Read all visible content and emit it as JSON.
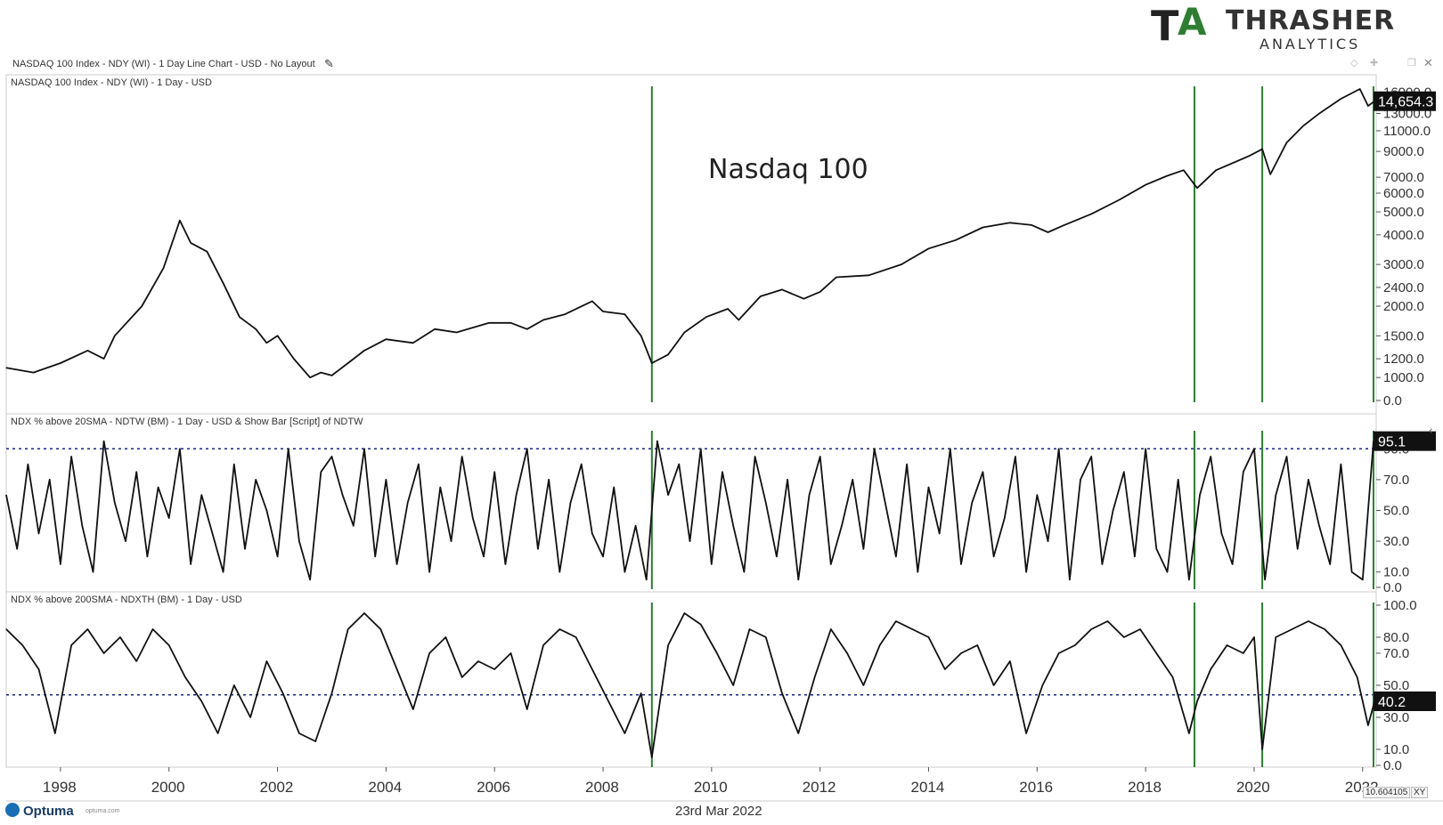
{
  "header": {
    "window_title": "NASDAQ 100 Index - NDY (WI) - 1 Day Line Chart - USD - No Layout",
    "logo_line1_a": "T",
    "logo_line1_b": "THRASHER",
    "logo_line2": "ANALYTICS"
  },
  "footer": {
    "brand": "Optuma",
    "brand_small": "optuma.com",
    "date": "23rd Mar 2022",
    "scale_value": "10.604105",
    "scale_mode": "XY"
  },
  "colors": {
    "line": "#111111",
    "marker": "#2e7d32",
    "dotted": "#1a237e",
    "panel_border": "#cccccc",
    "value_box": "#111111"
  },
  "chart_data": [
    {
      "type": "line",
      "panel_label": "NASDAQ 100 Index - NDY (WI) - 1 Day - USD",
      "annotation": "Nasdaq 100",
      "y_scale": "log",
      "yticks": [
        "16000.0",
        "13000.0",
        "11000.0",
        "9000.0",
        "7000.0",
        "6000.0",
        "5000.0",
        "4000.0",
        "3000.0",
        "2400.0",
        "2000.0",
        "1500.0",
        "1200.0",
        "1000.0",
        "0.0"
      ],
      "last_value": "14,654.3",
      "series": [
        {
          "x": [
            1997.0,
            1997.5,
            1998.0,
            1998.5,
            1998.8,
            1999.0,
            1999.5,
            1999.9,
            2000.2,
            2000.4,
            2000.7,
            2001.0,
            2001.3,
            2001.6,
            2001.8,
            2002.0,
            2002.3,
            2002.6,
            2002.8,
            2003.0,
            2003.3,
            2003.6,
            2004.0,
            2004.5,
            2004.9,
            2005.3,
            2005.9,
            2006.3,
            2006.6,
            2006.9,
            2007.3,
            2007.8,
            2008.0,
            2008.4,
            2008.7,
            2008.9,
            2009.2,
            2009.5,
            2009.9,
            2010.3,
            2010.5,
            2010.9,
            2011.3,
            2011.7,
            2012.0,
            2012.3,
            2012.9,
            2013.5,
            2014.0,
            2014.5,
            2015.0,
            2015.5,
            2015.9,
            2016.2,
            2016.5,
            2017.0,
            2017.5,
            2018.0,
            2018.4,
            2018.7,
            2018.95,
            2019.3,
            2019.9,
            2020.15,
            2020.3,
            2020.6,
            2020.9,
            2021.2,
            2021.6,
            2021.95,
            2022.1,
            2022.22
          ],
          "y": [
            1100,
            1050,
            1150,
            1300,
            1200,
            1500,
            2000,
            2900,
            4600,
            3700,
            3400,
            2500,
            1800,
            1600,
            1400,
            1500,
            1200,
            1000,
            1050,
            1020,
            1150,
            1300,
            1450,
            1400,
            1600,
            1550,
            1700,
            1700,
            1600,
            1750,
            1850,
            2100,
            1900,
            1850,
            1500,
            1150,
            1250,
            1550,
            1800,
            1950,
            1750,
            2200,
            2350,
            2150,
            2300,
            2650,
            2700,
            3000,
            3500,
            3800,
            4300,
            4500,
            4400,
            4100,
            4400,
            4900,
            5600,
            6500,
            7100,
            7500,
            6300,
            7500,
            8600,
            9200,
            7200,
            9800,
            11500,
            13000,
            15000,
            16500,
            14000,
            14654
          ]
        }
      ],
      "markers_x": [
        2008.9,
        2018.9,
        2020.15,
        2022.2
      ]
    },
    {
      "type": "line",
      "panel_label": "NDX % above 20SMA - NDTW (BM) - 1 Day - USD & Show Bar [Script] of NDTW",
      "yticks": [
        "90.0",
        "70.0",
        "50.0",
        "30.0",
        "10.0",
        "0.0"
      ],
      "ylim": [
        0,
        100
      ],
      "threshold": 90,
      "last_value": "95.1",
      "series": [
        {
          "x": [
            1997.0,
            1997.2,
            1997.4,
            1997.6,
            1997.8,
            1998.0,
            1998.2,
            1998.4,
            1998.6,
            1998.8,
            1999.0,
            1999.2,
            1999.4,
            1999.6,
            1999.8,
            2000.0,
            2000.2,
            2000.4,
            2000.6,
            2000.8,
            2001.0,
            2001.2,
            2001.4,
            2001.6,
            2001.8,
            2002.0,
            2002.2,
            2002.4,
            2002.6,
            2002.8,
            2003.0,
            2003.2,
            2003.4,
            2003.6,
            2003.8,
            2004.0,
            2004.2,
            2004.4,
            2004.6,
            2004.8,
            2005.0,
            2005.2,
            2005.4,
            2005.6,
            2005.8,
            2006.0,
            2006.2,
            2006.4,
            2006.6,
            2006.8,
            2007.0,
            2007.2,
            2007.4,
            2007.6,
            2007.8,
            2008.0,
            2008.2,
            2008.4,
            2008.6,
            2008.8,
            2009.0,
            2009.2,
            2009.4,
            2009.6,
            2009.8,
            2010.0,
            2010.2,
            2010.4,
            2010.6,
            2010.8,
            2011.0,
            2011.2,
            2011.4,
            2011.6,
            2011.8,
            2012.0,
            2012.2,
            2012.4,
            2012.6,
            2012.8,
            2013.0,
            2013.2,
            2013.4,
            2013.6,
            2013.8,
            2014.0,
            2014.2,
            2014.4,
            2014.6,
            2014.8,
            2015.0,
            2015.2,
            2015.4,
            2015.6,
            2015.8,
            2016.0,
            2016.2,
            2016.4,
            2016.6,
            2016.8,
            2017.0,
            2017.2,
            2017.4,
            2017.6,
            2017.8,
            2018.0,
            2018.2,
            2018.4,
            2018.6,
            2018.8,
            2019.0,
            2019.2,
            2019.4,
            2019.6,
            2019.8,
            2020.0,
            2020.2,
            2020.4,
            2020.6,
            2020.8,
            2021.0,
            2021.2,
            2021.4,
            2021.6,
            2021.8,
            2022.0,
            2022.2
          ],
          "y": [
            60,
            25,
            80,
            35,
            70,
            15,
            85,
            40,
            10,
            95,
            55,
            30,
            75,
            20,
            65,
            45,
            90,
            15,
            60,
            35,
            10,
            80,
            25,
            70,
            50,
            20,
            90,
            30,
            5,
            75,
            85,
            60,
            40,
            90,
            20,
            70,
            15,
            55,
            80,
            10,
            65,
            30,
            85,
            45,
            20,
            75,
            15,
            60,
            90,
            25,
            70,
            10,
            55,
            80,
            35,
            20,
            65,
            10,
            40,
            5,
            95,
            60,
            80,
            30,
            90,
            15,
            75,
            40,
            10,
            85,
            55,
            20,
            70,
            5,
            60,
            85,
            15,
            40,
            70,
            25,
            90,
            55,
            20,
            80,
            10,
            65,
            35,
            90,
            15,
            55,
            75,
            20,
            45,
            85,
            10,
            60,
            30,
            90,
            5,
            70,
            85,
            15,
            50,
            75,
            20,
            90,
            25,
            10,
            70,
            5,
            60,
            85,
            35,
            15,
            75,
            90,
            5,
            60,
            85,
            25,
            70,
            40,
            15,
            80,
            10,
            5,
            95
          ]
        }
      ],
      "markers_x": [
        2008.9,
        2018.9,
        2020.15,
        2022.2
      ]
    },
    {
      "type": "line",
      "panel_label": "NDX % above 200SMA - NDXTH (BM) - 1 Day - USD",
      "yticks": [
        "100.0",
        "80.0",
        "70.0",
        "50.0",
        "30.0",
        "10.0",
        "0.0"
      ],
      "ylim": [
        0,
        100
      ],
      "threshold": 44,
      "last_value": "40.2",
      "series": [
        {
          "x": [
            1997.0,
            1997.3,
            1997.6,
            1997.9,
            1998.2,
            1998.5,
            1998.8,
            1999.1,
            1999.4,
            1999.7,
            2000.0,
            2000.3,
            2000.6,
            2000.9,
            2001.2,
            2001.5,
            2001.8,
            2002.1,
            2002.4,
            2002.7,
            2003.0,
            2003.3,
            2003.6,
            2003.9,
            2004.2,
            2004.5,
            2004.8,
            2005.1,
            2005.4,
            2005.7,
            2006.0,
            2006.3,
            2006.6,
            2006.9,
            2007.2,
            2007.5,
            2007.8,
            2008.1,
            2008.4,
            2008.7,
            2008.9,
            2009.2,
            2009.5,
            2009.8,
            2010.1,
            2010.4,
            2010.7,
            2011.0,
            2011.3,
            2011.6,
            2011.9,
            2012.2,
            2012.5,
            2012.8,
            2013.1,
            2013.4,
            2013.7,
            2014.0,
            2014.3,
            2014.6,
            2014.9,
            2015.2,
            2015.5,
            2015.8,
            2016.1,
            2016.4,
            2016.7,
            2017.0,
            2017.3,
            2017.6,
            2017.9,
            2018.2,
            2018.5,
            2018.8,
            2018.95,
            2019.2,
            2019.5,
            2019.8,
            2020.0,
            2020.15,
            2020.4,
            2020.7,
            2021.0,
            2021.3,
            2021.6,
            2021.9,
            2022.1,
            2022.22
          ],
          "y": [
            85,
            75,
            60,
            20,
            75,
            85,
            70,
            80,
            65,
            85,
            75,
            55,
            40,
            20,
            50,
            30,
            65,
            45,
            20,
            15,
            45,
            85,
            95,
            85,
            60,
            35,
            70,
            80,
            55,
            65,
            60,
            70,
            35,
            75,
            85,
            80,
            60,
            40,
            20,
            45,
            5,
            75,
            95,
            88,
            70,
            50,
            85,
            80,
            45,
            20,
            55,
            85,
            70,
            50,
            75,
            90,
            85,
            80,
            60,
            70,
            75,
            50,
            65,
            20,
            50,
            70,
            75,
            85,
            90,
            80,
            85,
            70,
            55,
            20,
            40,
            60,
            75,
            70,
            80,
            10,
            80,
            85,
            90,
            85,
            75,
            55,
            25,
            40
          ]
        }
      ],
      "markers_x": [
        2008.9,
        2018.9,
        2020.15,
        2022.2
      ]
    }
  ],
  "x_axis": {
    "labels": [
      "1998",
      "2000",
      "2002",
      "2004",
      "2006",
      "2008",
      "2010",
      "2012",
      "2014",
      "2016",
      "2018",
      "2020",
      "2022"
    ],
    "xlim": [
      1997.0,
      2022.25
    ]
  }
}
